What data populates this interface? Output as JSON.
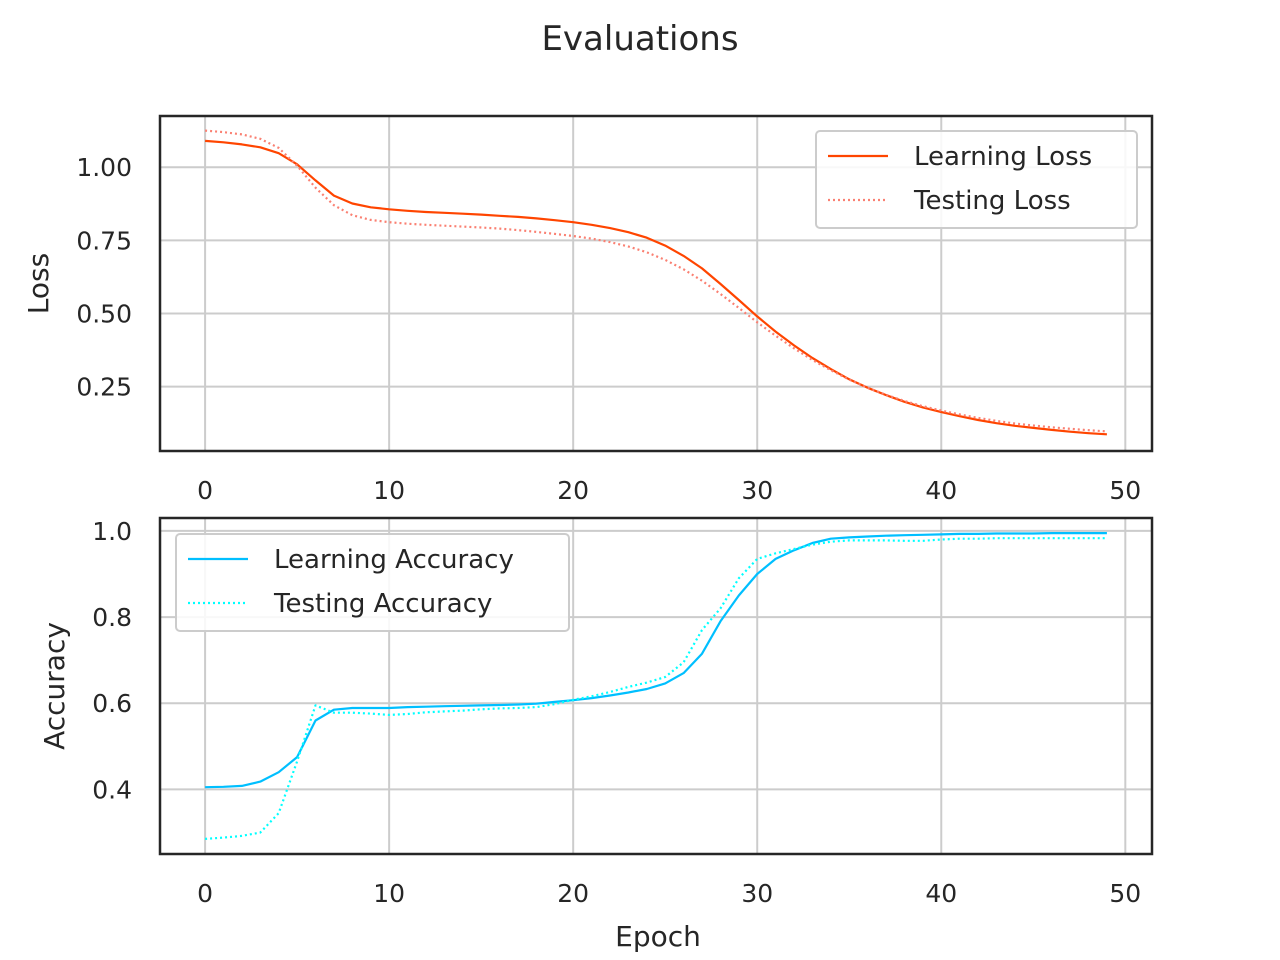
{
  "figure_title": "Evaluations",
  "colors": {
    "learning_loss": "#ff4500",
    "testing_loss": "#fa8072",
    "learning_accuracy": "#00bfff",
    "testing_accuracy": "#00ffff",
    "grid": "#cccccc",
    "axes": "#262626"
  },
  "chart_data": [
    {
      "type": "line",
      "title": "",
      "xlabel": "",
      "ylabel": "Loss",
      "xlim": [
        -2.45,
        51.45
      ],
      "ylim": [
        0.03,
        1.175
      ],
      "xticks": [
        0,
        10,
        20,
        30,
        40,
        50
      ],
      "xtick_labels": [
        "0",
        "10",
        "20",
        "30",
        "40",
        "50"
      ],
      "yticks": [
        0.25,
        0.5,
        0.75,
        1.0
      ],
      "ytick_labels": [
        "0.25",
        "0.50",
        "0.75",
        "1.00"
      ],
      "grid": true,
      "legend_position": "upper right",
      "x": [
        0,
        1,
        2,
        3,
        4,
        5,
        6,
        7,
        8,
        9,
        10,
        11,
        12,
        13,
        14,
        15,
        16,
        17,
        18,
        19,
        20,
        21,
        22,
        23,
        24,
        25,
        26,
        27,
        28,
        29,
        30,
        31,
        32,
        33,
        34,
        35,
        36,
        37,
        38,
        39,
        40,
        41,
        42,
        43,
        44,
        45,
        46,
        47,
        48,
        49
      ],
      "series": [
        {
          "name": "Learning Loss",
          "style": "solid",
          "values": [
            1.09,
            1.085,
            1.078,
            1.068,
            1.048,
            1.01,
            0.955,
            0.903,
            0.876,
            0.863,
            0.856,
            0.851,
            0.847,
            0.844,
            0.841,
            0.838,
            0.834,
            0.83,
            0.825,
            0.819,
            0.812,
            0.803,
            0.792,
            0.778,
            0.759,
            0.732,
            0.697,
            0.654,
            0.601,
            0.546,
            0.49,
            0.438,
            0.391,
            0.348,
            0.31,
            0.275,
            0.246,
            0.221,
            0.198,
            0.179,
            0.163,
            0.149,
            0.136,
            0.125,
            0.116,
            0.109,
            0.102,
            0.096,
            0.091,
            0.087
          ]
        },
        {
          "name": "Testing Loss",
          "style": "dotted",
          "values": [
            1.125,
            1.12,
            1.112,
            1.097,
            1.066,
            1.005,
            0.93,
            0.87,
            0.836,
            0.82,
            0.812,
            0.807,
            0.803,
            0.8,
            0.797,
            0.794,
            0.79,
            0.785,
            0.779,
            0.772,
            0.765,
            0.756,
            0.744,
            0.729,
            0.709,
            0.683,
            0.651,
            0.612,
            0.567,
            0.519,
            0.47,
            0.424,
            0.381,
            0.341,
            0.306,
            0.274,
            0.246,
            0.222,
            0.201,
            0.183,
            0.168,
            0.155,
            0.143,
            0.133,
            0.124,
            0.117,
            0.111,
            0.106,
            0.101,
            0.097
          ]
        }
      ]
    },
    {
      "type": "line",
      "title": "",
      "xlabel": "Epoch",
      "ylabel": "Accuracy",
      "xlim": [
        -2.45,
        51.45
      ],
      "ylim": [
        0.25,
        1.03
      ],
      "xticks": [
        0,
        10,
        20,
        30,
        40,
        50
      ],
      "xtick_labels": [
        "0",
        "10",
        "20",
        "30",
        "40",
        "50"
      ],
      "yticks": [
        0.4,
        0.6,
        0.8,
        1.0
      ],
      "ytick_labels": [
        "0.4",
        "0.6",
        "0.8",
        "1.0"
      ],
      "grid": true,
      "legend_position": "upper left",
      "x": [
        0,
        1,
        2,
        3,
        4,
        5,
        6,
        7,
        8,
        9,
        10,
        11,
        12,
        13,
        14,
        15,
        16,
        17,
        18,
        19,
        20,
        21,
        22,
        23,
        24,
        25,
        26,
        27,
        28,
        29,
        30,
        31,
        32,
        33,
        34,
        35,
        36,
        37,
        38,
        39,
        40,
        41,
        42,
        43,
        44,
        45,
        46,
        47,
        48,
        49
      ],
      "series": [
        {
          "name": "Learning Accuracy",
          "style": "solid",
          "values": [
            0.405,
            0.406,
            0.408,
            0.418,
            0.44,
            0.475,
            0.56,
            0.585,
            0.589,
            0.589,
            0.589,
            0.591,
            0.592,
            0.593,
            0.594,
            0.595,
            0.596,
            0.597,
            0.599,
            0.603,
            0.607,
            0.612,
            0.618,
            0.625,
            0.633,
            0.646,
            0.67,
            0.715,
            0.79,
            0.85,
            0.9,
            0.935,
            0.955,
            0.972,
            0.982,
            0.985,
            0.987,
            0.989,
            0.99,
            0.991,
            0.992,
            0.993,
            0.993,
            0.994,
            0.994,
            0.994,
            0.995,
            0.995,
            0.995,
            0.995
          ]
        },
        {
          "name": "Testing Accuracy",
          "style": "dotted",
          "values": [
            0.285,
            0.288,
            0.292,
            0.3,
            0.345,
            0.465,
            0.595,
            0.578,
            0.578,
            0.576,
            0.573,
            0.575,
            0.579,
            0.581,
            0.583,
            0.586,
            0.588,
            0.589,
            0.591,
            0.598,
            0.608,
            0.616,
            0.626,
            0.638,
            0.648,
            0.661,
            0.695,
            0.77,
            0.82,
            0.89,
            0.935,
            0.948,
            0.958,
            0.968,
            0.975,
            0.978,
            0.978,
            0.978,
            0.977,
            0.977,
            0.98,
            0.982,
            0.982,
            0.983,
            0.983,
            0.983,
            0.983,
            0.983,
            0.983,
            0.983
          ]
        }
      ]
    }
  ]
}
